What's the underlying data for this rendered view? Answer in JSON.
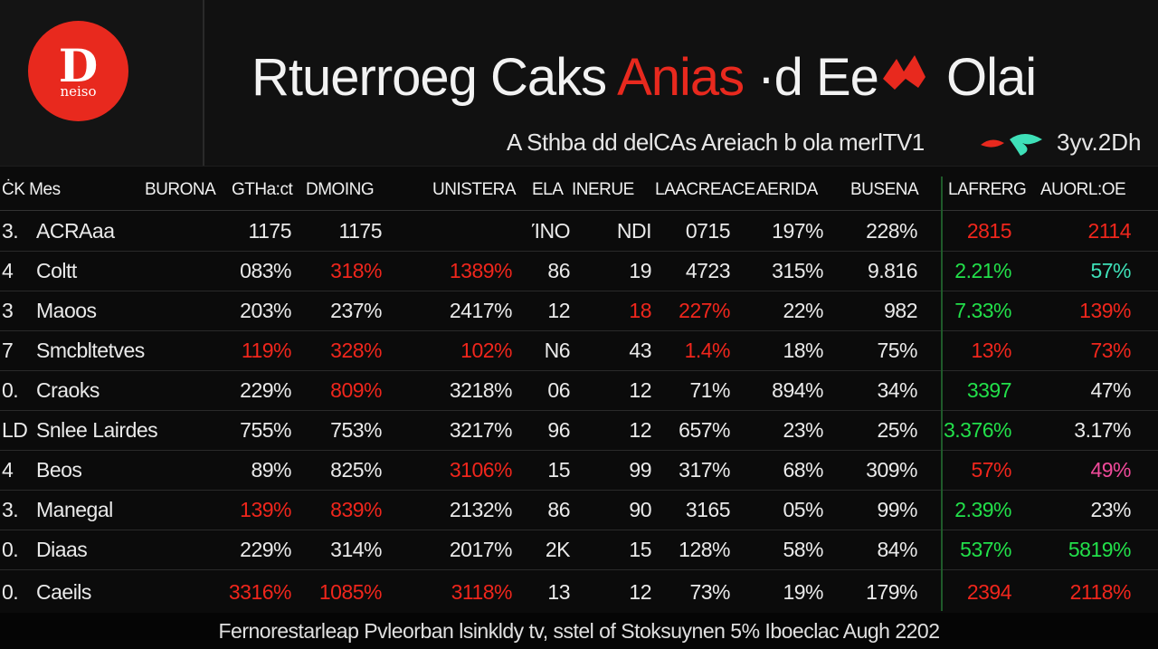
{
  "brand": {
    "logo_text": "neiso",
    "logo_mark": "D"
  },
  "header": {
    "title_part1": "Rtuerroeg Caks ",
    "title_accent": "Anias",
    "title_part2": " ·d Ee",
    "title_part3": " Olai",
    "subtitle": "A Sthba dd delCAs Areiach b ola merlTV1",
    "subtitle_tail": "3yv.2Dh"
  },
  "table": {
    "headers": [
      "ĊK Mes",
      "BURONA",
      "GTHa:ct",
      "DMOING",
      "UNISTERA",
      "ELA",
      "INERUE",
      "LAACREACE",
      "AERIDA",
      "BUSENA",
      "LAFRERG",
      "AUORL:OE"
    ],
    "rows": [
      {
        "idx": "3.",
        "name": "ACRAaa",
        "v": [
          "1175",
          "1175",
          "",
          "ΊΝΟ",
          "ΝDI",
          "0715",
          "197%",
          "228%",
          "2815",
          "2114"
        ],
        "colors": [
          "wh",
          "wh",
          "wh",
          "wh",
          "wh",
          "wh",
          "wh",
          "wh",
          "red",
          "red"
        ]
      },
      {
        "idx": "4",
        "name": "Coltt",
        "v": [
          "083%",
          "318%",
          "1389%",
          "86",
          "19",
          "4723",
          "315%",
          "9.816",
          "2.21%",
          "57%"
        ],
        "colors": [
          "wh",
          "red",
          "red",
          "wh",
          "wh",
          "wh",
          "wh",
          "wh",
          "grn",
          "teal"
        ]
      },
      {
        "idx": "3",
        "name": "Maoos",
        "v": [
          "203%",
          "237%",
          "2417%",
          "12",
          "18",
          "227%",
          "22%",
          "982",
          "7.33%",
          "139%"
        ],
        "colors": [
          "wh",
          "wh",
          "wh",
          "wh",
          "red",
          "red",
          "wh",
          "wh",
          "grn",
          "red"
        ]
      },
      {
        "idx": "7",
        "name": "Smcbltetves",
        "v": [
          "119%",
          "328%",
          "102%",
          "Ν6",
          "43",
          "1.4%",
          "18%",
          "75%",
          "13%",
          "73%"
        ],
        "colors": [
          "red",
          "red",
          "red",
          "wh",
          "wh",
          "red",
          "wh",
          "wh",
          "red",
          "red"
        ]
      },
      {
        "idx": "0.",
        "name": "Craoks",
        "v": [
          "229%",
          "809%",
          "3218%",
          "06",
          "12",
          "71%",
          "894%",
          "34%",
          "3397",
          "47%"
        ],
        "colors": [
          "wh",
          "red",
          "wh",
          "wh",
          "wh",
          "wh",
          "wh",
          "wh",
          "grn",
          "wh"
        ]
      },
      {
        "idx": "LD",
        "name": "Snlee Lairdes",
        "v": [
          "755%",
          "753%",
          "3217%",
          "96",
          "12",
          "657%",
          "23%",
          "25%",
          "3.376%",
          "3.17%"
        ],
        "colors": [
          "wh",
          "wh",
          "wh",
          "wh",
          "wh",
          "wh",
          "wh",
          "wh",
          "grn",
          "wh"
        ]
      },
      {
        "idx": "4",
        "name": "Beos",
        "v": [
          "89%",
          "825%",
          "3106%",
          "15",
          "99",
          "317%",
          "68%",
          "309%",
          "57%",
          "49%"
        ],
        "colors": [
          "wh",
          "wh",
          "red",
          "wh",
          "wh",
          "wh",
          "wh",
          "wh",
          "red",
          "pnk"
        ]
      },
      {
        "idx": "3.",
        "name": "Manegal",
        "v": [
          "139%",
          "839%",
          "2132%",
          "86",
          "90",
          "3165",
          "05%",
          "99%",
          "2.39%",
          "23%"
        ],
        "colors": [
          "red",
          "red",
          "wh",
          "wh",
          "wh",
          "wh",
          "wh",
          "wh",
          "grn",
          "wh"
        ]
      },
      {
        "idx": "0.",
        "name": "Diaas",
        "v": [
          "229%",
          "314%",
          "2017%",
          "2K",
          "15",
          "128%",
          "58%",
          "84%",
          "537%",
          "5819%"
        ],
        "colors": [
          "wh",
          "wh",
          "wh",
          "wh",
          "wh",
          "wh",
          "wh",
          "wh",
          "grn",
          "grn"
        ]
      },
      {
        "idx": "0.",
        "name": "Caeils",
        "v": [
          "3316%",
          "1085%",
          "3118%",
          "13",
          "12",
          "73%",
          "19%",
          "179%",
          "2394",
          "2118%"
        ],
        "colors": [
          "red",
          "red",
          "red",
          "wh",
          "wh",
          "wh",
          "wh",
          "wh",
          "red",
          "red"
        ]
      }
    ]
  },
  "footer": {
    "text": "Fernorestarleap Pvleorban lsinkldy tv, sstel of Stoksuynen 5% Iboeclac Augh 2202"
  },
  "colors": {
    "accent_red": "#e8291e",
    "positive_green": "#22e04a",
    "background": "#0b0b0b"
  }
}
